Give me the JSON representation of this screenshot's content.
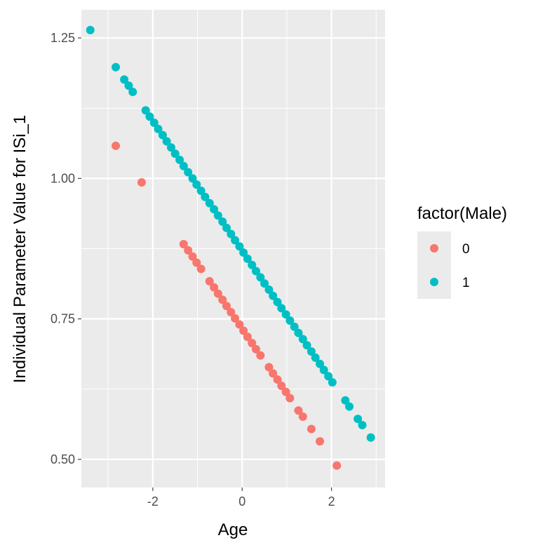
{
  "chart_data": {
    "type": "scatter",
    "title": "",
    "xlabel": "Age",
    "ylabel": "Individual Parameter Value for ISi_1",
    "xlim": [
      -3.6,
      3.2
    ],
    "ylim": [
      0.45,
      1.3
    ],
    "x_ticks": [
      {
        "value": -2,
        "label": "-2"
      },
      {
        "value": 0,
        "label": "0"
      },
      {
        "value": 2,
        "label": "2"
      }
    ],
    "y_ticks": [
      {
        "value": 0.5,
        "label": "0.50"
      },
      {
        "value": 0.75,
        "label": "0.75"
      },
      {
        "value": 1.0,
        "label": "1.00"
      },
      {
        "value": 1.25,
        "label": "1.25"
      }
    ],
    "grid": true,
    "background": "#ebebeb",
    "legend": {
      "title": "factor(Male)",
      "position": "right"
    },
    "series": [
      {
        "name": "0",
        "color": "#F8766D",
        "points": [
          [
            -2.83,
            1.058
          ],
          [
            -2.25,
            0.993
          ],
          [
            -1.31,
            0.883
          ],
          [
            -1.21,
            0.872
          ],
          [
            -1.11,
            0.861
          ],
          [
            -1.02,
            0.85
          ],
          [
            -0.92,
            0.839
          ],
          [
            -0.73,
            0.817
          ],
          [
            -0.63,
            0.806
          ],
          [
            -0.54,
            0.795
          ],
          [
            -0.44,
            0.784
          ],
          [
            -0.35,
            0.773
          ],
          [
            -0.25,
            0.762
          ],
          [
            -0.16,
            0.751
          ],
          [
            -0.06,
            0.74
          ],
          [
            0.03,
            0.729
          ],
          [
            0.12,
            0.718
          ],
          [
            0.22,
            0.707
          ],
          [
            0.31,
            0.696
          ],
          [
            0.41,
            0.685
          ],
          [
            0.6,
            0.664
          ],
          [
            0.69,
            0.653
          ],
          [
            0.79,
            0.642
          ],
          [
            0.88,
            0.631
          ],
          [
            0.98,
            0.62
          ],
          [
            1.07,
            0.609
          ],
          [
            1.26,
            0.587
          ],
          [
            1.36,
            0.576
          ],
          [
            1.55,
            0.554
          ],
          [
            1.74,
            0.532
          ],
          [
            2.12,
            0.489
          ]
        ]
      },
      {
        "name": "1",
        "color": "#00BFC4",
        "points": [
          [
            -3.4,
            1.264
          ],
          [
            -2.83,
            1.198
          ],
          [
            -2.64,
            1.176
          ],
          [
            -2.54,
            1.165
          ],
          [
            -2.45,
            1.154
          ],
          [
            -2.16,
            1.121
          ],
          [
            -2.07,
            1.11
          ],
          [
            -1.97,
            1.099
          ],
          [
            -1.88,
            1.088
          ],
          [
            -1.78,
            1.077
          ],
          [
            -1.69,
            1.066
          ],
          [
            -1.59,
            1.055
          ],
          [
            -1.5,
            1.044
          ],
          [
            -1.4,
            1.033
          ],
          [
            -1.31,
            1.022
          ],
          [
            -1.21,
            1.011
          ],
          [
            -1.11,
            1.0
          ],
          [
            -1.02,
            0.989
          ],
          [
            -0.92,
            0.978
          ],
          [
            -0.83,
            0.967
          ],
          [
            -0.73,
            0.956
          ],
          [
            -0.63,
            0.945
          ],
          [
            -0.54,
            0.934
          ],
          [
            -0.44,
            0.923
          ],
          [
            -0.35,
            0.912
          ],
          [
            -0.25,
            0.901
          ],
          [
            -0.16,
            0.89
          ],
          [
            -0.06,
            0.879
          ],
          [
            0.03,
            0.868
          ],
          [
            0.12,
            0.857
          ],
          [
            0.22,
            0.846
          ],
          [
            0.31,
            0.835
          ],
          [
            0.41,
            0.824
          ],
          [
            0.5,
            0.813
          ],
          [
            0.6,
            0.802
          ],
          [
            0.69,
            0.791
          ],
          [
            0.79,
            0.78
          ],
          [
            0.88,
            0.769
          ],
          [
            0.98,
            0.758
          ],
          [
            1.07,
            0.747
          ],
          [
            1.17,
            0.736
          ],
          [
            1.26,
            0.725
          ],
          [
            1.36,
            0.714
          ],
          [
            1.45,
            0.703
          ],
          [
            1.55,
            0.692
          ],
          [
            1.64,
            0.681
          ],
          [
            1.74,
            0.67
          ],
          [
            1.83,
            0.659
          ],
          [
            1.93,
            0.648
          ],
          [
            2.02,
            0.637
          ],
          [
            2.31,
            0.605
          ],
          [
            2.4,
            0.594
          ],
          [
            2.59,
            0.572
          ],
          [
            2.69,
            0.561
          ],
          [
            2.88,
            0.539
          ]
        ]
      }
    ]
  }
}
